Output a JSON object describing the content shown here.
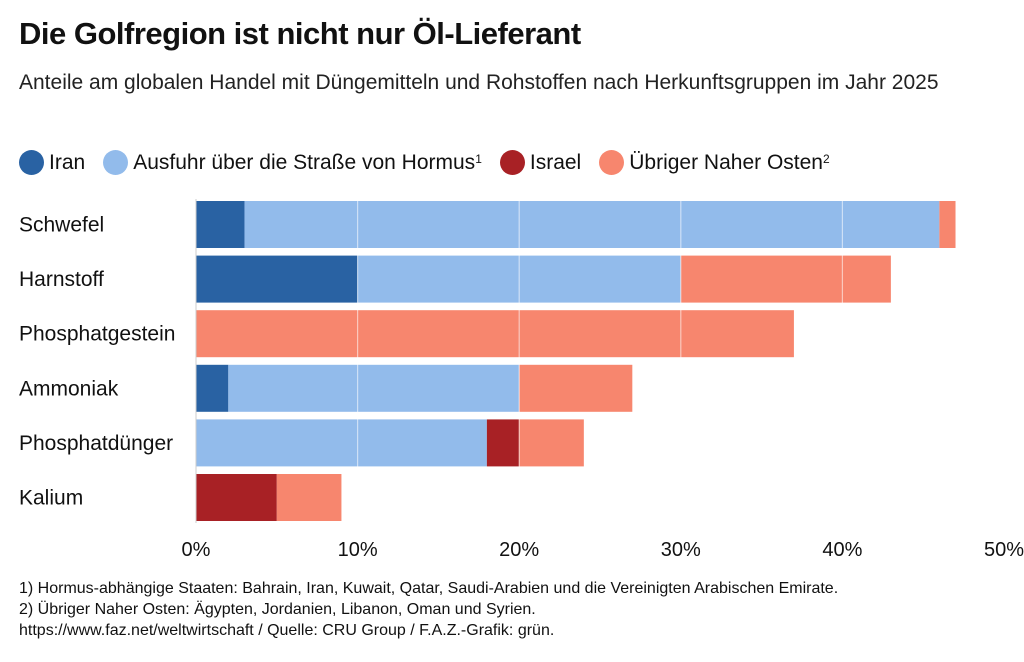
{
  "title": "Die Golfregion ist nicht nur Öl-Lieferant",
  "subtitle": "Anteile am globalen Handel mit Düngemitteln und Rohstoffen nach Herkunftsgruppen im Jahr 2025",
  "legend": [
    {
      "label": "Iran",
      "sup": "",
      "color": "#2962a3"
    },
    {
      "label": "Ausfuhr über die Straße von Hormus",
      "sup": "1",
      "color": "#92bbeb"
    },
    {
      "label": "Israel",
      "sup": "",
      "color": "#a82125"
    },
    {
      "label": "Übriger Naher Osten",
      "sup": "2",
      "color": "#f7866e"
    }
  ],
  "chart_data": {
    "type": "bar",
    "orientation": "horizontal",
    "stacked": true,
    "title": "Die Golfregion ist nicht nur Öl-Lieferant",
    "subtitle": "Anteile am globalen Handel mit Düngemitteln und Rohstoffen nach Herkunftsgruppen im Jahr 2025",
    "categories": [
      "Schwefel",
      "Harnstoff",
      "Phosphatgestein",
      "Ammoniak",
      "Phosphatdünger",
      "Kalium"
    ],
    "series": [
      {
        "name": "Iran",
        "color": "#2962a3",
        "values": [
          3,
          10,
          0,
          2,
          0,
          0
        ]
      },
      {
        "name": "Ausfuhr über die Straße von Hormus",
        "color": "#92bbeb",
        "values": [
          43,
          20,
          0,
          18,
          18,
          0
        ]
      },
      {
        "name": "Israel",
        "color": "#a82125",
        "values": [
          0,
          0,
          0,
          0,
          2,
          5
        ]
      },
      {
        "name": "Übriger Naher Osten",
        "color": "#f7866e",
        "values": [
          1,
          13,
          37,
          7,
          4,
          4
        ]
      }
    ],
    "xlabel": "",
    "ylabel": "",
    "xlim": [
      0,
      50
    ],
    "xticks": [
      0,
      10,
      20,
      30,
      40,
      50
    ],
    "xtick_labels": [
      "0%",
      "10%",
      "20%",
      "30%",
      "40%",
      "50%"
    ],
    "grid": true,
    "legend_position": "top-left"
  },
  "footnotes": [
    "1) Hormus-abhängige Staaten: Bahrain, Iran, Kuwait, Qatar, Saudi-Arabien und die Vereinigten Arabischen Emirate.",
    "2) Übriger Naher Osten: Ägypten, Jordanien, Libanon, Oman und Syrien.",
    "https://www.faz.net/weltwirtschaft / Quelle: CRU Group / F.A.Z.-Grafik: grün."
  ]
}
